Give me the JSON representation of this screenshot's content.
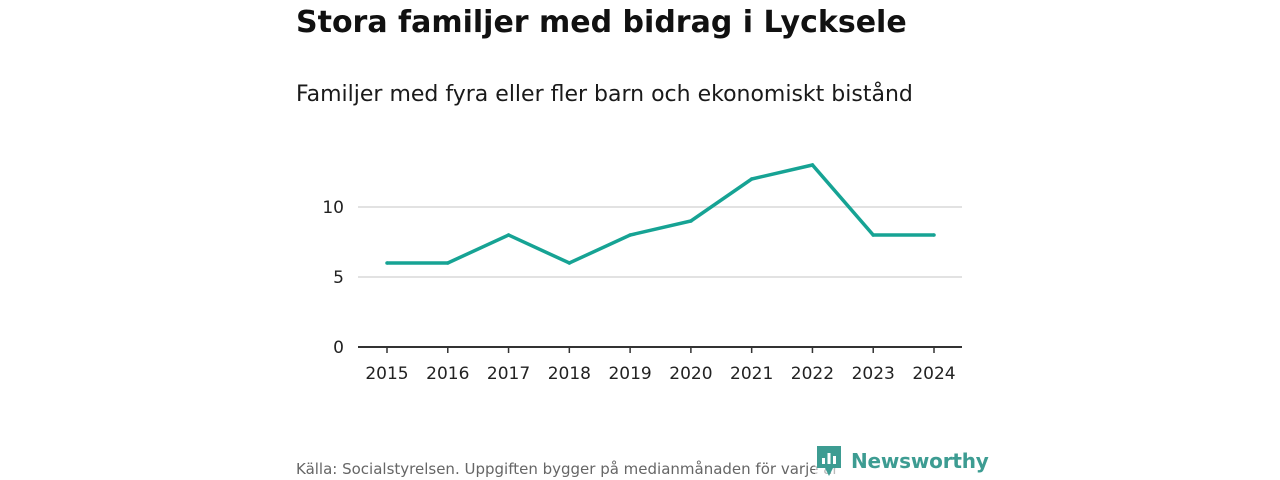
{
  "header": {
    "title": "Stora familjer med bidrag i Lycksele",
    "subtitle": "Familjer med fyra eller fler barn och ekonomiskt bistånd"
  },
  "footer": {
    "source": "Källa: Socialstyrelsen. Uppgiften bygger på medianmånaden för varje år",
    "brand": "Newsworthy"
  },
  "colors": {
    "line": "#16a394",
    "brand": "#3d9c92",
    "grid": "#d9d9d9",
    "axis": "#333333"
  },
  "chart_data": {
    "type": "line",
    "title": "Stora familjer med bidrag i Lycksele",
    "subtitle": "Familjer med fyra eller fler barn och ekonomiskt bistånd",
    "xlabel": "",
    "ylabel": "",
    "x": [
      "2015",
      "2016",
      "2017",
      "2018",
      "2019",
      "2020",
      "2021",
      "2022",
      "2023",
      "2024"
    ],
    "series": [
      {
        "values": [
          6,
          6,
          8,
          6,
          8,
          9,
          12,
          13,
          8,
          8
        ]
      }
    ],
    "yticks": [
      0,
      5,
      10
    ],
    "ylim": [
      0,
      14
    ],
    "grid": true,
    "legend": "none"
  }
}
